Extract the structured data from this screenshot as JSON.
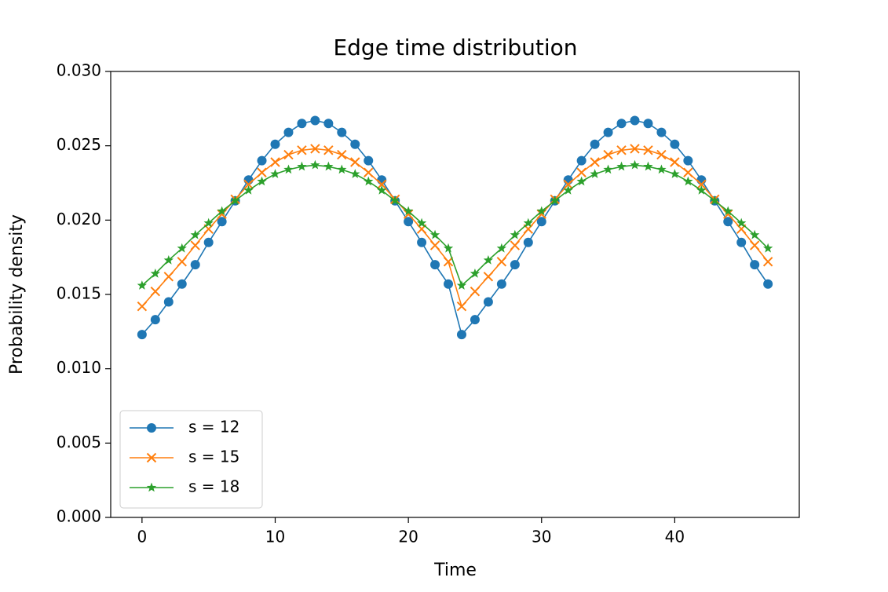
{
  "chart_data": {
    "type": "line",
    "title": "Edge time distribution",
    "x_label": "Time",
    "y_label": "Probability density",
    "x": [
      0,
      1,
      2,
      3,
      4,
      5,
      6,
      7,
      8,
      9,
      10,
      11,
      12,
      13,
      14,
      15,
      16,
      17,
      18,
      19,
      20,
      21,
      22,
      23,
      24,
      25,
      26,
      27,
      28,
      29,
      30,
      31,
      32,
      33,
      34,
      35,
      36,
      37,
      38,
      39,
      40,
      41,
      42,
      43,
      44,
      45,
      46,
      47
    ],
    "series": [
      {
        "name": "s = 12",
        "color": "#1f77b4",
        "marker": "circle",
        "values": [
          0.0123,
          0.0133,
          0.0145,
          0.0157,
          0.017,
          0.0185,
          0.0199,
          0.0213,
          0.0227,
          0.024,
          0.0251,
          0.0259,
          0.0265,
          0.0267,
          0.0265,
          0.0259,
          0.0251,
          0.024,
          0.0227,
          0.0213,
          0.0199,
          0.0185,
          0.017,
          0.0157,
          0.0123,
          0.0133,
          0.0145,
          0.0157,
          0.017,
          0.0185,
          0.0199,
          0.0213,
          0.0227,
          0.024,
          0.0251,
          0.0259,
          0.0265,
          0.0267,
          0.0265,
          0.0259,
          0.0251,
          0.024,
          0.0227,
          0.0213,
          0.0199,
          0.0185,
          0.017,
          0.0157
        ]
      },
      {
        "name": "s = 15",
        "color": "#ff7f0e",
        "marker": "x",
        "values": [
          0.0142,
          0.0152,
          0.0162,
          0.0172,
          0.0183,
          0.0194,
          0.0204,
          0.0214,
          0.0224,
          0.0232,
          0.0239,
          0.0244,
          0.0247,
          0.0248,
          0.0247,
          0.0244,
          0.0239,
          0.0232,
          0.0224,
          0.0214,
          0.0204,
          0.0194,
          0.0183,
          0.0172,
          0.0142,
          0.0152,
          0.0162,
          0.0172,
          0.0183,
          0.0194,
          0.0204,
          0.0214,
          0.0224,
          0.0232,
          0.0239,
          0.0244,
          0.0247,
          0.0248,
          0.0247,
          0.0244,
          0.0239,
          0.0232,
          0.0224,
          0.0214,
          0.0204,
          0.0194,
          0.0183,
          0.0172
        ]
      },
      {
        "name": "s = 18",
        "color": "#2ca02c",
        "marker": "star",
        "values": [
          0.0156,
          0.0164,
          0.0173,
          0.0181,
          0.019,
          0.0198,
          0.0206,
          0.0213,
          0.022,
          0.0226,
          0.0231,
          0.0234,
          0.0236,
          0.0237,
          0.0236,
          0.0234,
          0.0231,
          0.0226,
          0.022,
          0.0213,
          0.0206,
          0.0198,
          0.019,
          0.0181,
          0.0156,
          0.0164,
          0.0173,
          0.0181,
          0.019,
          0.0198,
          0.0206,
          0.0213,
          0.022,
          0.0226,
          0.0231,
          0.0234,
          0.0236,
          0.0237,
          0.0236,
          0.0234,
          0.0231,
          0.0226,
          0.022,
          0.0213,
          0.0206,
          0.0198,
          0.019,
          0.0181
        ]
      }
    ],
    "xlim": [
      -2.35,
      49.35
    ],
    "xticks": [
      0,
      10,
      20,
      30,
      40
    ],
    "ylim": [
      0,
      0.03
    ],
    "yticks": [
      {
        "value": 0,
        "label": "0.000"
      },
      {
        "value": 0.005,
        "label": "0.005"
      },
      {
        "value": 0.01,
        "label": "0.010"
      },
      {
        "value": 0.015,
        "label": "0.015"
      },
      {
        "value": 0.02,
        "label": "0.020"
      },
      {
        "value": 0.025,
        "label": "0.025"
      },
      {
        "value": 0.03,
        "label": "0.030"
      }
    ],
    "legend": "lower left",
    "grid": false
  }
}
